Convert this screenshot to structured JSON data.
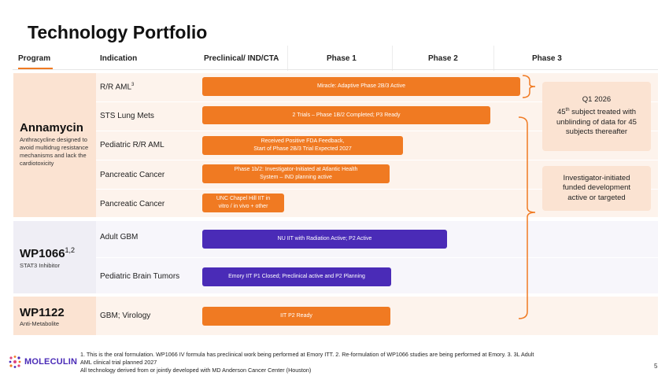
{
  "title": "Technology Portfolio",
  "columns": {
    "program": "Program",
    "indication": "Indication",
    "preclinical": "Preclinical/ IND/CTA",
    "phase1": "Phase 1",
    "phase2": "Phase 2",
    "phase3": "Phase 3"
  },
  "programs": {
    "annamycin": {
      "name": "Annamycin",
      "description": "Anthracycline designed to avoid multidrug resistance mechanisms and lack the cardiotoxicity"
    },
    "wp1066": {
      "name": "WP1066",
      "superscript": "1,2",
      "description": "STAT3 Inhibitor"
    },
    "wp1122": {
      "name": "WP1122",
      "description": "Anti-Metabolite"
    }
  },
  "indications": {
    "rr_aml": "R/R AML",
    "rr_aml_sup": "3",
    "sts_lung": "STS Lung Mets",
    "pediatric_aml": "Pediatric R/R AML",
    "pancreatic1": "Pancreatic Cancer",
    "pancreatic2": "Pancreatic Cancer",
    "adult_gbm": "Adult GBM",
    "ped_brain": "Pediatric Brain Tumors",
    "gbm_virology": "GBM; Virology"
  },
  "bars": {
    "rr_aml": "Miracle: Adaptive Phase 2B/3 Active",
    "sts_lung": "2 Trials – Phase 1B/2 Completed; P3 Ready",
    "pediatric_aml_1": "Received Positive FDA Feedback,",
    "pediatric_aml_2": "Start of Phase 2B/3 Trial Expected 2027",
    "pancreatic1_1": "Phase 1b/2: Investigator-Initiated at Atlantic Health",
    "pancreatic1_2": "System – IND planning active",
    "pancreatic2_1": "UNC Chapel Hill IIT in",
    "pancreatic2_2": "vitro / in vivo + other",
    "adult_gbm": "NU IIT with Radiation Active; P2 Active",
    "ped_brain": "Emory IIT P1 Closed; Preclinical active and P2 Planning",
    "gbm_virology": "IIT P2 Ready"
  },
  "callouts": {
    "q1_line1": "Q1 2026",
    "q1_line2_num": "45",
    "q1_line2_sup": "th",
    "q1_line2_rest": " subject treated with",
    "q1_line3": "unblinding of data for 45",
    "q1_line4": "subjects thereafter",
    "inv_line1": "Investigator-initiated",
    "inv_line2": "funded development",
    "inv_line3": "active or targeted"
  },
  "footnote": {
    "line1": "1. This is the oral formulation. WP1066 IV formula has preclinical work being performed at Emory ITT. 2. Re-formulation of WP1066 studies are being performed at Emory. 3. 3L Adult",
    "line2": "AML clinical trial planned 2027",
    "line3": "All technology derived from or jointly developed with MD Anderson Cancer Center (Houston)"
  },
  "logo_text": "MOLECULIN",
  "page_number": "5",
  "colors": {
    "accent_orange": "#f07a22",
    "accent_purple": "#4a2bb7",
    "light_orange": "#fbe3d2",
    "light_purple": "#efeef5"
  }
}
